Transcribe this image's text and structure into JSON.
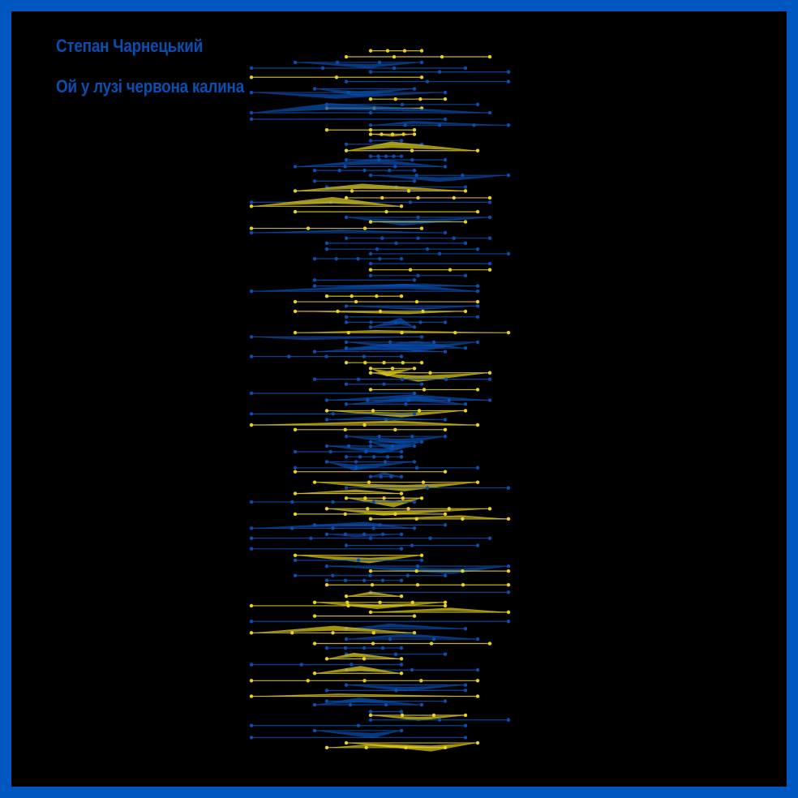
{
  "author": "Степан Чарнецький",
  "title": "Ой у лузі червона калина",
  "colors": {
    "frame": "#0057c0",
    "background": "#000000",
    "text": "#0a4fb0",
    "blue": "#0a4fb0",
    "yellow": "#e8d21d"
  }
}
